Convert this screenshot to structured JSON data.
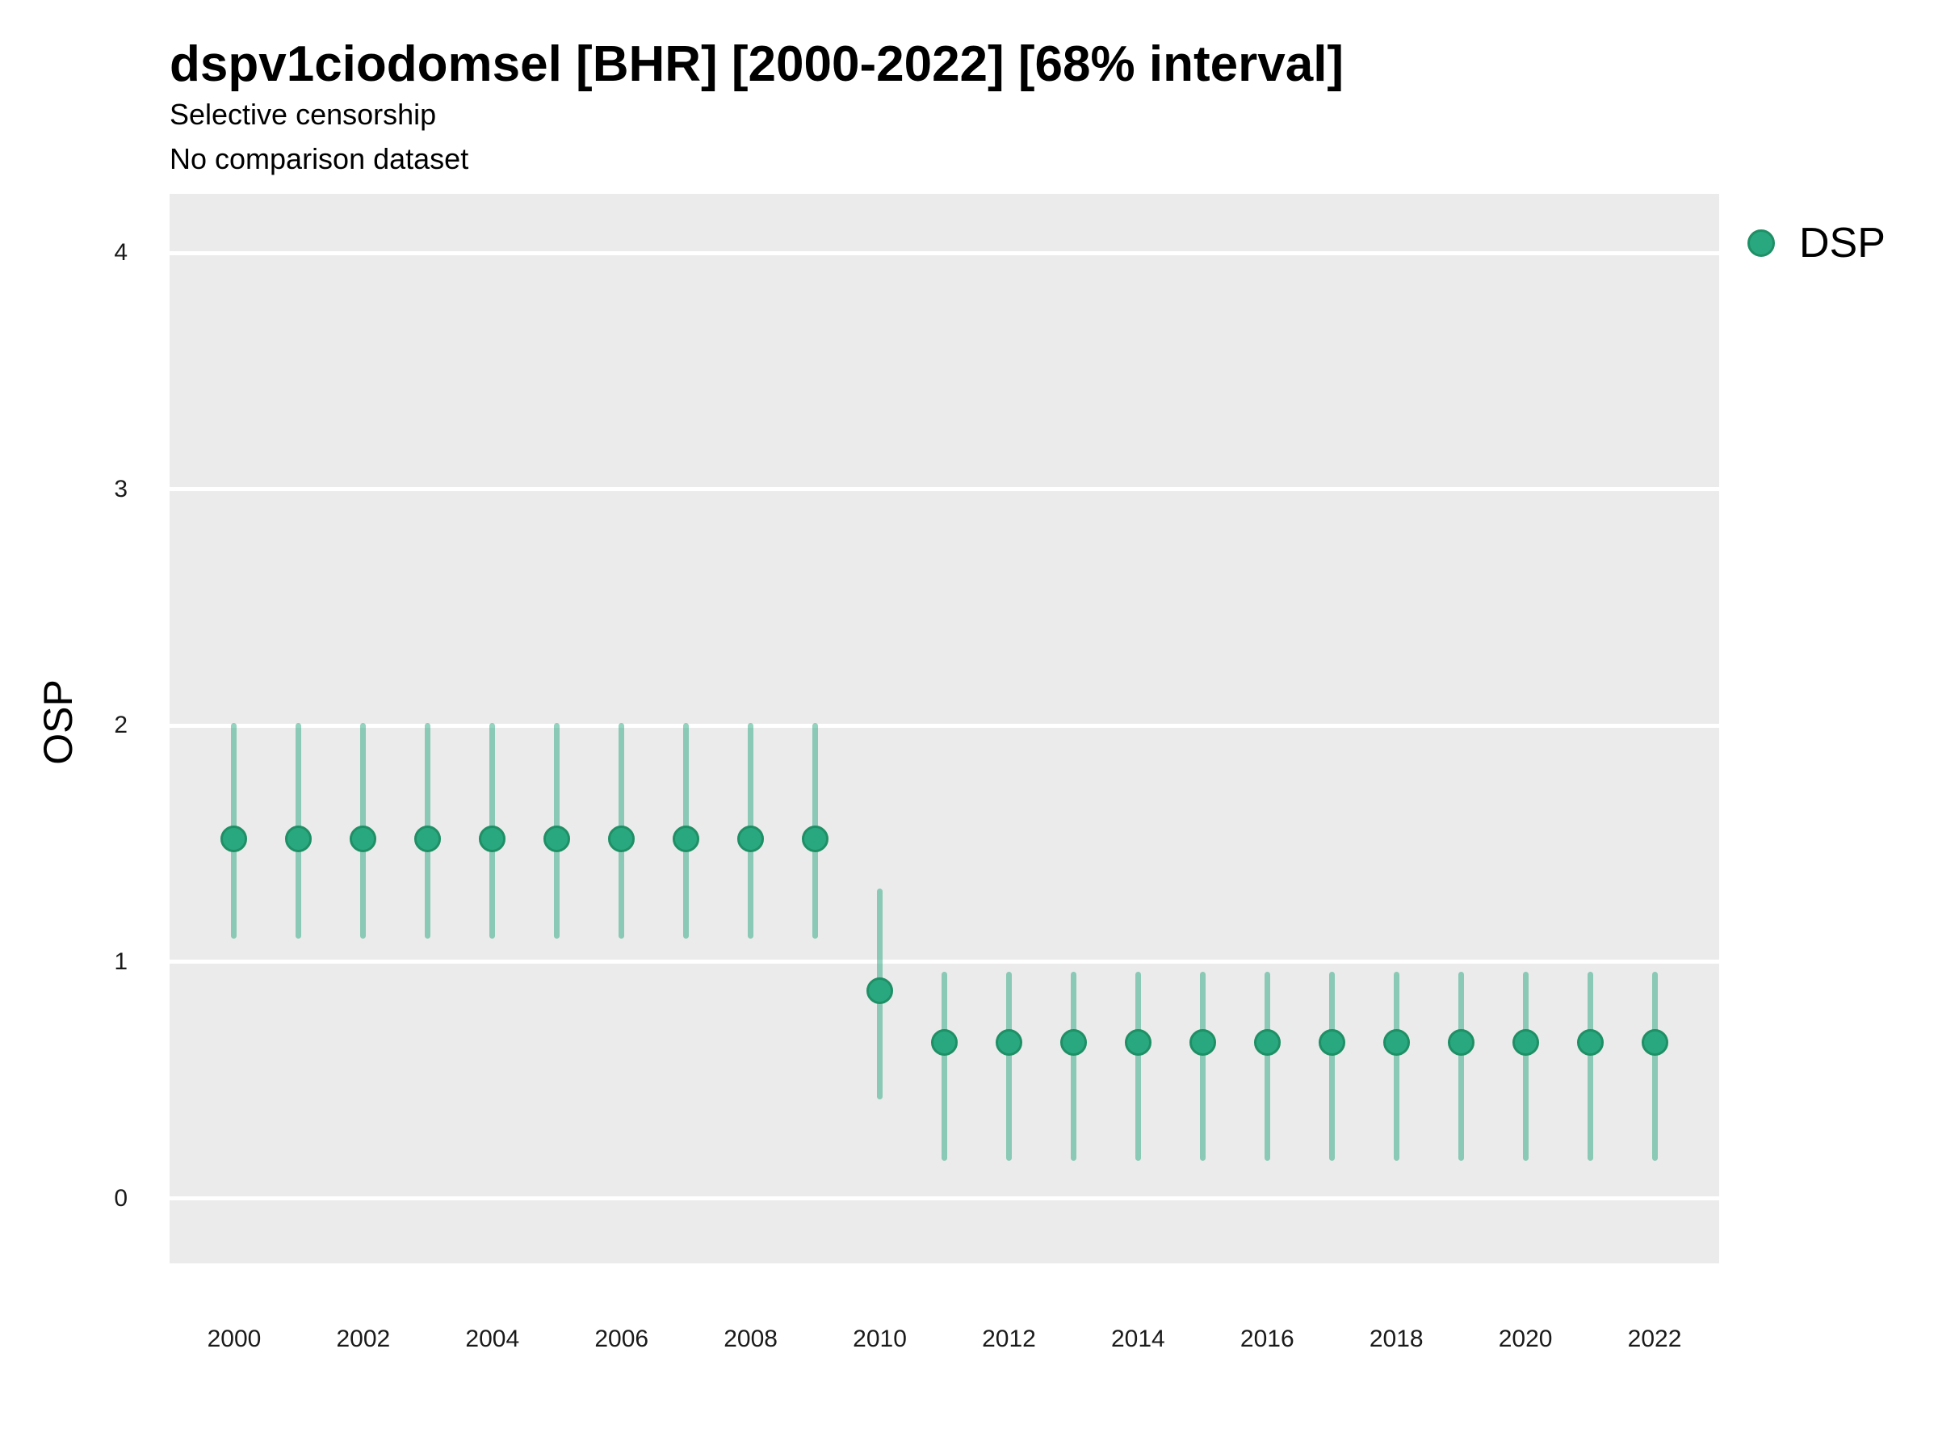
{
  "header": {
    "title": "dspv1ciodomsel [BHR] [2000-2022] [68% interval]",
    "subtitle": "Selective censorship",
    "caption": "No comparison dataset"
  },
  "axes": {
    "y_label": "OSP",
    "x_label": ""
  },
  "legend": {
    "items": [
      {
        "label": "DSP",
        "color": "#29a87f"
      }
    ]
  },
  "colors": {
    "point_fill": "#29a87f",
    "point_stroke": "#1f8f66",
    "interval_line": "rgba(41,168,127,0.5)",
    "panel_background": "#EBEBEB",
    "gridline": "#FFFFFF",
    "text": "#000000",
    "tick_text": "#1a1a1a"
  },
  "chart_data": {
    "type": "scatter",
    "subtype": "pointrange-interval",
    "title": "dspv1ciodomsel [BHR] [2000-2022] [68% interval]",
    "subtitle": "Selective censorship",
    "caption": "No comparison dataset",
    "interval_level": "68%",
    "xlabel": "",
    "ylabel": "OSP",
    "xlim": [
      1999,
      2023
    ],
    "ylim": [
      -0.275,
      4.25
    ],
    "x_ticks": [
      2000,
      2002,
      2004,
      2006,
      2008,
      2010,
      2012,
      2014,
      2016,
      2018,
      2020,
      2022
    ],
    "y_ticks": [
      0,
      1,
      2,
      3,
      4
    ],
    "grid": "horizontal-major-only",
    "legend_position": "right-top",
    "series": [
      {
        "name": "DSP",
        "color": "#29a87f",
        "interval_color": "rgba(41,168,127,0.5)",
        "x": [
          2000,
          2001,
          2002,
          2003,
          2004,
          2005,
          2006,
          2007,
          2008,
          2009,
          2010,
          2011,
          2012,
          2013,
          2014,
          2015,
          2016,
          2017,
          2018,
          2019,
          2020,
          2021,
          2022
        ],
        "y": [
          1.52,
          1.52,
          1.52,
          1.52,
          1.52,
          1.52,
          1.52,
          1.52,
          1.52,
          1.52,
          0.88,
          0.66,
          0.66,
          0.66,
          0.66,
          0.66,
          0.66,
          0.66,
          0.66,
          0.66,
          0.66,
          0.66,
          0.66
        ],
        "y_lo": [
          1.1,
          1.1,
          1.1,
          1.1,
          1.1,
          1.1,
          1.1,
          1.1,
          1.1,
          1.1,
          0.42,
          0.16,
          0.16,
          0.16,
          0.16,
          0.16,
          0.16,
          0.16,
          0.16,
          0.16,
          0.16,
          0.16,
          0.16
        ],
        "y_hi": [
          2.01,
          2.01,
          2.01,
          2.01,
          2.01,
          2.01,
          2.01,
          2.01,
          2.01,
          2.01,
          1.31,
          0.96,
          0.96,
          0.96,
          0.96,
          0.96,
          0.96,
          0.96,
          0.96,
          0.96,
          0.96,
          0.96,
          0.96
        ]
      }
    ]
  }
}
